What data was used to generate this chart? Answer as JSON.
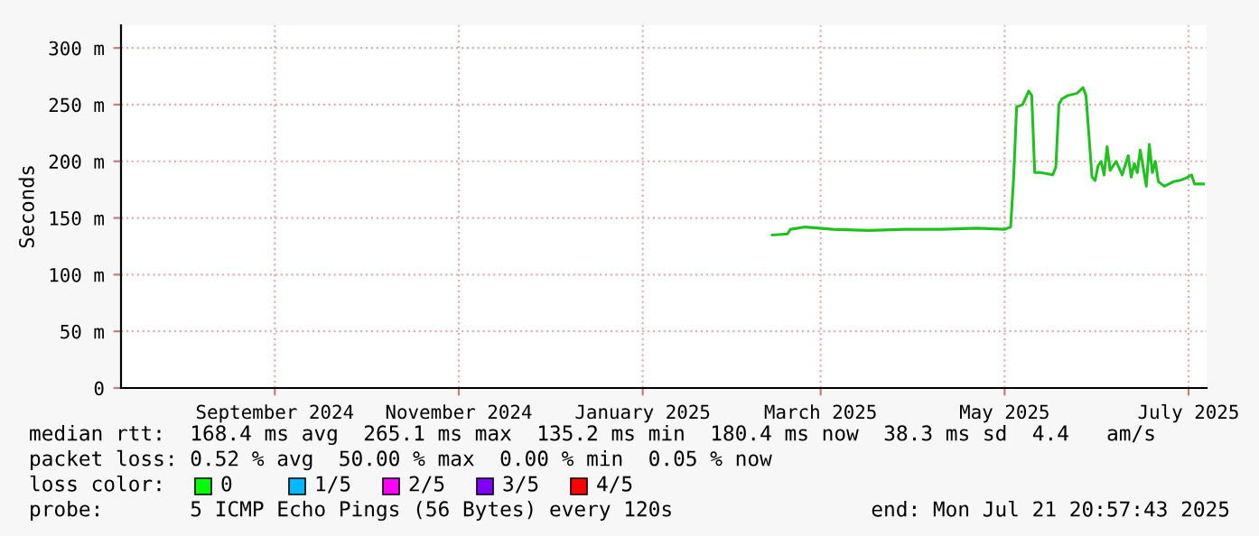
{
  "chart_data": {
    "type": "line",
    "ylabel": "Seconds",
    "x": [
      "2025-02-13",
      "2025-02-18",
      "2025-02-19",
      "2025-02-24",
      "2025-03-05",
      "2025-03-17",
      "2025-03-29",
      "2025-04-10",
      "2025-04-22",
      "2025-05-01",
      "2025-05-03",
      "2025-05-04",
      "2025-05-05",
      "2025-05-07",
      "2025-05-09",
      "2025-05-10",
      "2025-05-11",
      "2025-05-13",
      "2025-05-17",
      "2025-05-18",
      "2025-05-19",
      "2025-05-20",
      "2025-05-22",
      "2025-05-25",
      "2025-05-27",
      "2025-05-28",
      "2025-05-29",
      "2025-05-30",
      "2025-05-31",
      "2025-06-01",
      "2025-06-02",
      "2025-06-03",
      "2025-06-04",
      "2025-06-05",
      "2025-06-07",
      "2025-06-09",
      "2025-06-11",
      "2025-06-12",
      "2025-06-13",
      "2025-06-14",
      "2025-06-15",
      "2025-06-17",
      "2025-06-18",
      "2025-06-19",
      "2025-06-20",
      "2025-06-21",
      "2025-06-23",
      "2025-06-26",
      "2025-06-28",
      "2025-06-30",
      "2025-07-02",
      "2025-07-03",
      "2025-07-06"
    ],
    "series": [
      {
        "color": "#20c020",
        "values": [
          135,
          136,
          140,
          142,
          140,
          139,
          140,
          140,
          141,
          140,
          142,
          185,
          248,
          250,
          262,
          258,
          190,
          190,
          188,
          195,
          250,
          255,
          258,
          260,
          265,
          258,
          222,
          186,
          183,
          196,
          200,
          188,
          213,
          192,
          200,
          188,
          205,
          186,
          198,
          190,
          210,
          178,
          215,
          190,
          200,
          182,
          178,
          182,
          183,
          185,
          188,
          180,
          180
        ]
      }
    ],
    "xlim": [
      "2024-07-12",
      "2025-07-07"
    ],
    "xticks": [
      {
        "value": "2024-09-01",
        "label": "September 2024"
      },
      {
        "value": "2024-11-01",
        "label": "November 2024"
      },
      {
        "value": "2025-01-01",
        "label": "January 2025"
      },
      {
        "value": "2025-03-01",
        "label": "March 2025"
      },
      {
        "value": "2025-05-01",
        "label": "May 2025"
      },
      {
        "value": "2025-07-01",
        "label": "July 2025"
      }
    ],
    "ylim": [
      0,
      320
    ],
    "yticks": [
      0,
      {
        "value": 50,
        "label": "50 m"
      },
      {
        "value": 100,
        "label": "100 m"
      },
      {
        "value": 150,
        "label": "150 m"
      },
      {
        "value": 200,
        "label": "200 m"
      },
      {
        "value": 250,
        "label": "250 m"
      },
      {
        "value": 300,
        "label": "300 m"
      }
    ],
    "grid": true,
    "annotations": [
      "median rtt:  168.4 ms avg  265.1 ms max  135.2 ms min  180.4 ms now  38.3 ms sd  4.4   am/s",
      "packet loss: 0.52 % avg  50.00 % max  0.00 % min  0.05 % now",
      "loss color:",
      "0",
      "1/5",
      "2/5",
      "3/5",
      "4/5",
      "probe:       5 ICMP Echo Pings (56 Bytes) every 120s",
      "end: Mon Jul 21 20:57:43 2025"
    ]
  }
}
